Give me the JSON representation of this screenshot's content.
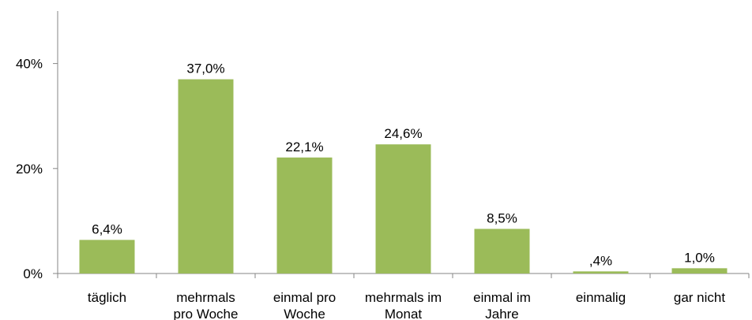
{
  "chart_data": {
    "type": "bar",
    "title": "",
    "xlabel": "",
    "ylabel": "",
    "categories": [
      [
        "täglich"
      ],
      [
        "mehrmals",
        "pro Woche"
      ],
      [
        "einmal pro",
        "Woche"
      ],
      [
        "mehrmals im",
        "Monat"
      ],
      [
        "einmal im",
        "Jahre"
      ],
      [
        "einmalig"
      ],
      [
        "gar nicht"
      ]
    ],
    "values": [
      6.4,
      37.0,
      22.1,
      24.6,
      8.5,
      0.4,
      1.0
    ],
    "value_labels": [
      "6,4%",
      "37,0%",
      "22,1%",
      "24,6%",
      "8,5%",
      ",4%",
      "1,0%"
    ],
    "ylim": [
      0,
      50
    ],
    "yticks": [
      0,
      20,
      40
    ],
    "ytick_labels": [
      "0%",
      "20%",
      "40%"
    ],
    "grid": false,
    "legend": "none",
    "bar_color": "#9bbb59",
    "axis_color": "#868686"
  }
}
